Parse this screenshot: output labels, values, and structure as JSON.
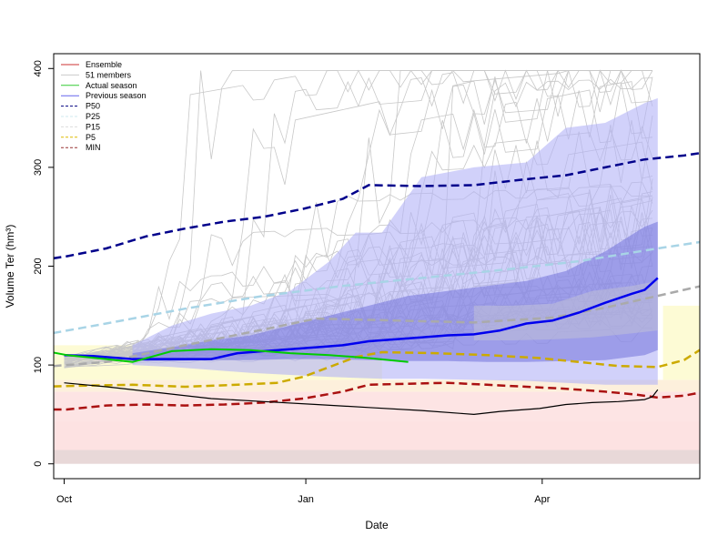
{
  "chart_data": {
    "type": "line",
    "title": "",
    "xlabel": "Date",
    "ylabel": "Volume Ter (hm³)",
    "xlim": [
      0,
      246
    ],
    "ylim": [
      -15,
      415
    ],
    "x_unit": "days since 2023-09-27",
    "x_ticks": [
      {
        "label": "Oct",
        "x": 4
      },
      {
        "label": "Jan",
        "x": 96
      },
      {
        "label": "Apr",
        "x": 186
      }
    ],
    "y_ticks": [
      0,
      100,
      200,
      300,
      400
    ],
    "grid": false,
    "legend": {
      "position": "top-left",
      "entries": [
        {
          "label": "Ensemble",
          "color": "#cc3333",
          "dash": "solid"
        },
        {
          "label": "51 members",
          "color": "#cccccc",
          "dash": "solid"
        },
        {
          "label": "Actual season",
          "color": "#33cc33",
          "dash": "solid"
        },
        {
          "label": "Previous season",
          "color": "#6666ee",
          "dash": "solid"
        },
        {
          "label": "P50",
          "color": "#000080",
          "dash": "dashed"
        },
        {
          "label": "P25",
          "color": "#cfe8ef",
          "dash": "dashed"
        },
        {
          "label": "P15",
          "color": "#dddddd",
          "dash": "dashed"
        },
        {
          "label": "P5",
          "color": "#ddbb00",
          "dash": "dashed"
        },
        {
          "label": "MIN",
          "color": "#993333",
          "dash": "dashed"
        }
      ]
    },
    "background_bands": [
      {
        "y0": 0,
        "y1": 14,
        "color": "#e8d8d8"
      },
      {
        "y0": 14,
        "y1": 43,
        "color": "#fde2e2"
      },
      {
        "y0": 43,
        "y1": 73,
        "color": "#fde4e4"
      },
      {
        "y0": 73,
        "y1": 85,
        "color": "#fdf0dc"
      },
      {
        "y0": 85,
        "y1": 120,
        "color": "#fdfbd5",
        "x1": 125
      },
      {
        "y0": 85,
        "y1": 160,
        "color": "#fdfbd5",
        "x0": 232
      }
    ],
    "bands": [
      {
        "name": "ensemble outer range",
        "color": "#b3b3f7",
        "x": [
          30,
          45,
          60,
          75,
          90,
          105,
          115,
          125,
          140,
          160,
          180,
          195,
          210,
          225,
          230
        ],
        "upper": [
          120,
          140,
          152,
          160,
          175,
          205,
          234,
          234,
          290,
          300,
          305,
          340,
          345,
          365,
          370
        ],
        "lower": [
          100,
          98,
          95,
          92,
          90,
          88,
          87,
          86,
          86,
          85,
          84,
          82,
          80,
          80,
          80
        ]
      },
      {
        "name": "ensemble middle range",
        "color": "#7979dd",
        "x": [
          30,
          45,
          60,
          75,
          90,
          105,
          120,
          135,
          150,
          165,
          180,
          195,
          210,
          225,
          230
        ],
        "upper": [
          112,
          118,
          125,
          130,
          140,
          150,
          160,
          170,
          175,
          180,
          185,
          195,
          215,
          240,
          245
        ],
        "lower": [
          104,
          104,
          105,
          105,
          106,
          106,
          105,
          104,
          104,
          103,
          103,
          104,
          105,
          110,
          115
        ]
      },
      {
        "name": "ensemble inner range",
        "color": "#bcbcd8",
        "x": [
          160,
          175,
          190,
          205,
          220,
          230
        ],
        "upper": [
          160,
          160,
          162,
          175,
          180,
          185
        ],
        "lower": [
          125,
          125,
          126,
          128,
          132,
          135
        ]
      }
    ],
    "series": [
      {
        "name": "P50",
        "color": "#00008b",
        "dash": "dashed",
        "width": 2.5,
        "x": [
          -5,
          5,
          20,
          35,
          50,
          65,
          80,
          95,
          110,
          120,
          140,
          160,
          180,
          195,
          210,
          225,
          240,
          250
        ],
        "y": [
          206,
          210,
          218,
          230,
          238,
          245,
          250,
          258,
          268,
          282,
          281,
          282,
          288,
          292,
          300,
          308,
          312,
          316
        ]
      },
      {
        "name": "P25",
        "color": "#a8d4e6",
        "dash": "dashed",
        "width": 2.5,
        "x": [
          -5,
          20,
          50,
          80,
          110,
          140,
          170,
          200,
          230,
          250
        ],
        "y": [
          130,
          142,
          157,
          170,
          180,
          188,
          196,
          205,
          218,
          226
        ]
      },
      {
        "name": "P15",
        "color": "#aaaaaa",
        "dash": "dashed",
        "width": 2.5,
        "x": [
          -5,
          20,
          50,
          80,
          100,
          130,
          160,
          190,
          210,
          230,
          250
        ],
        "y": [
          98,
          103,
          120,
          136,
          147,
          145,
          143,
          148,
          158,
          170,
          182
        ]
      },
      {
        "name": "P5",
        "color": "#ccaa00",
        "dash": "dashed",
        "width": 2.5,
        "x": [
          -5,
          10,
          30,
          50,
          70,
          85,
          95,
          105,
          115,
          125,
          145,
          165,
          185,
          200,
          215,
          230,
          240,
          250
        ],
        "y": [
          78,
          79,
          80,
          78,
          80,
          82,
          88,
          98,
          108,
          113,
          112,
          110,
          107,
          103,
          99,
          98,
          105,
          122
        ]
      },
      {
        "name": "MIN",
        "color": "#aa1111",
        "dash": "dashed",
        "width": 2.5,
        "x": [
          -5,
          5,
          20,
          35,
          50,
          65,
          80,
          95,
          110,
          120,
          135,
          150,
          165,
          180,
          195,
          210,
          222,
          230,
          240,
          250
        ],
        "y": [
          55,
          55,
          59,
          60,
          59,
          60,
          62,
          66,
          73,
          80,
          81,
          82,
          80,
          78,
          76,
          73,
          70,
          67,
          69,
          74
        ]
      },
      {
        "name": "Previous season",
        "color": "#0000ee",
        "dash": "solid",
        "width": 2.5,
        "x": [
          4,
          15,
          30,
          45,
          60,
          70,
          80,
          90,
          100,
          110,
          120,
          130,
          140,
          150,
          160,
          170,
          180,
          190,
          200,
          210,
          220,
          225,
          230
        ],
        "y": [
          110,
          109,
          106,
          106,
          106,
          112,
          114,
          116,
          118,
          120,
          124,
          126,
          128,
          130,
          131,
          135,
          142,
          145,
          153,
          163,
          172,
          176,
          188
        ]
      },
      {
        "name": "Actual season",
        "color": "#00cc00",
        "dash": "solid",
        "width": 2,
        "x": [
          -5,
          5,
          20,
          30,
          45,
          60,
          75,
          90,
          105,
          120,
          135
        ],
        "y": [
          115,
          110,
          106,
          103,
          114,
          116,
          115,
          112,
          110,
          107,
          103
        ]
      },
      {
        "name": "Ensemble",
        "color": "#000000",
        "dash": "solid",
        "width": 1.2,
        "x": [
          4,
          20,
          40,
          60,
          80,
          100,
          120,
          140,
          155,
          160,
          170,
          185,
          195,
          205,
          215,
          225,
          228,
          230
        ],
        "y": [
          82,
          78,
          72,
          66,
          63,
          60,
          57,
          54,
          51,
          50,
          53,
          56,
          60,
          62,
          63,
          65,
          68,
          75
        ]
      }
    ]
  }
}
